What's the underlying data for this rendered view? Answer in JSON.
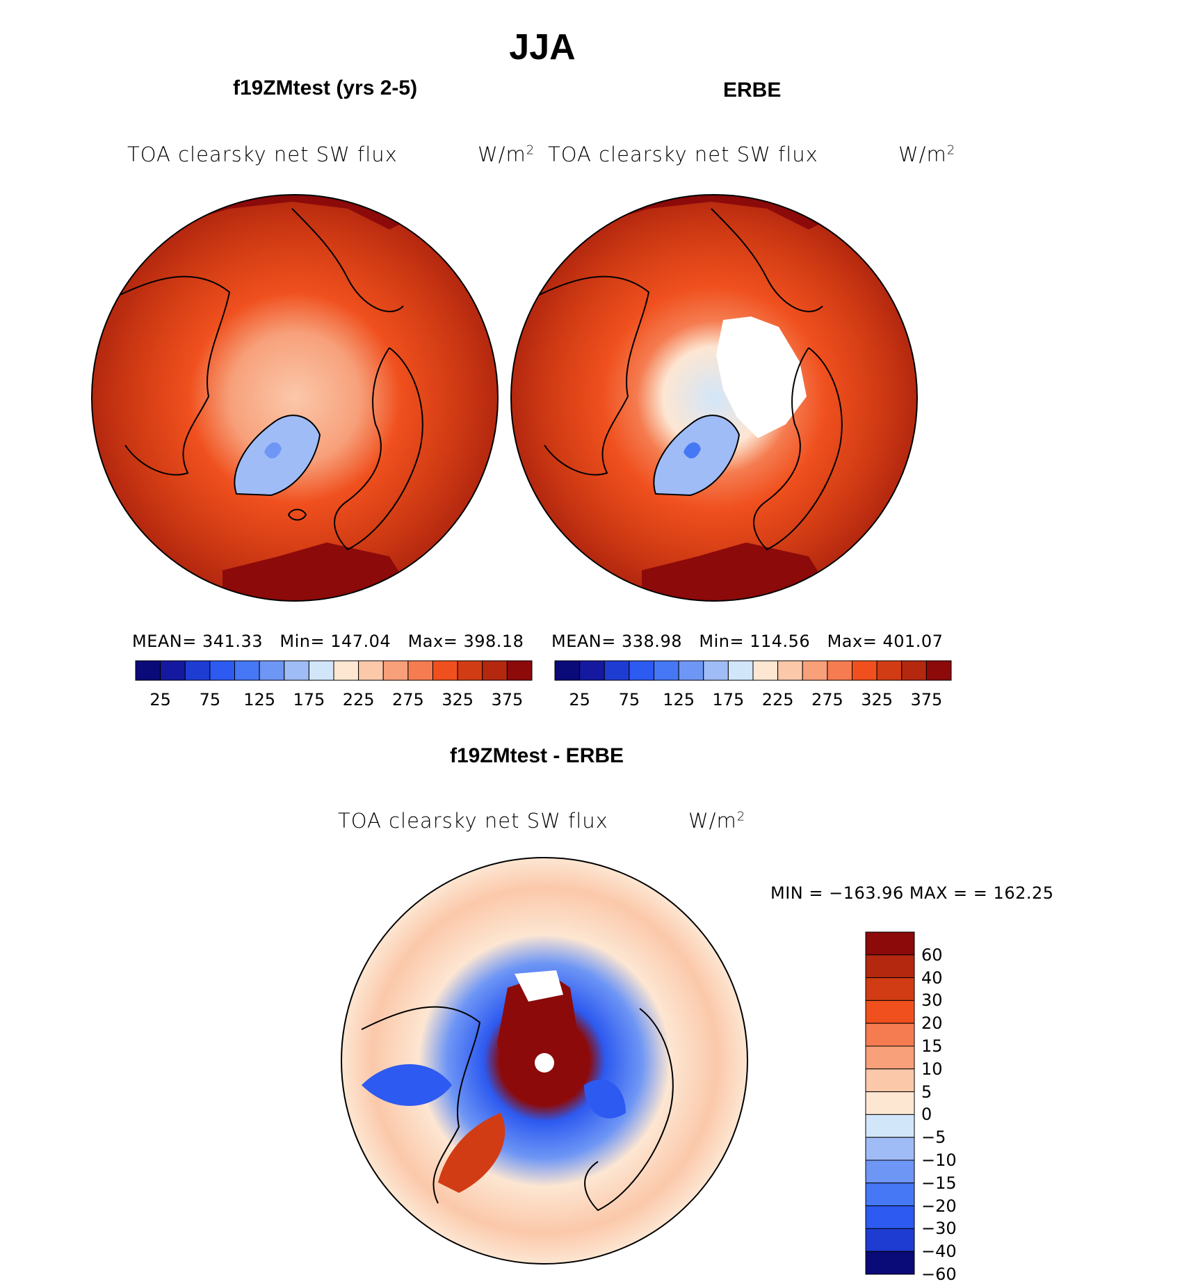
{
  "season": "JJA",
  "variable": "TOA clearsky net SW flux",
  "units_base": "W/m",
  "units_exp": "2",
  "colors": {
    "flux_scale": [
      "#0a0a78",
      "#1419a0",
      "#1e3cd2",
      "#2d5af0",
      "#4678f5",
      "#6e96f5",
      "#a0bcf7",
      "#d2e6fa",
      "#fde6d2",
      "#fbc8aa",
      "#f7a07a",
      "#f57c50",
      "#f0501e",
      "#d23c14",
      "#b4280f",
      "#8c0a0a"
    ],
    "diff_scale": [
      "#0a0a78",
      "#1e3cd2",
      "#2d5af0",
      "#4678f5",
      "#6e96f5",
      "#a0bcf7",
      "#d2e6fa",
      "#fde6d2",
      "#fbc8aa",
      "#f7a07a",
      "#f57c50",
      "#f0501e",
      "#d23c14",
      "#b4280f",
      "#8c0a0a"
    ]
  },
  "panels": {
    "model": {
      "title": "f19ZMtest (yrs 2-5)",
      "stats": {
        "mean_label": "MEAN=",
        "mean": "341.33",
        "min_label": "Min=",
        "min": "147.04",
        "max_label": "Max=",
        "max": "398.18"
      }
    },
    "obs": {
      "title": "ERBE",
      "stats": {
        "mean_label": "MEAN=",
        "mean": "338.98",
        "min_label": "Min=",
        "min": "114.56",
        "max_label": "Max=",
        "max": "401.07"
      }
    },
    "diff": {
      "title": "f19ZMtest - ERBE",
      "stats": {
        "min_label": "MIN =",
        "min": "−163.96",
        "max_label": "MAX =",
        "max": "162.25"
      }
    }
  },
  "flux_colorbar_ticks": [
    "25",
    "75",
    "125",
    "175",
    "225",
    "275",
    "325",
    "375"
  ],
  "diff_colorbar_ticks": [
    "60",
    "40",
    "30",
    "20",
    "15",
    "10",
    "5",
    "0",
    "−5",
    "−10",
    "−15",
    "−20",
    "−30",
    "−40",
    "−60"
  ]
}
